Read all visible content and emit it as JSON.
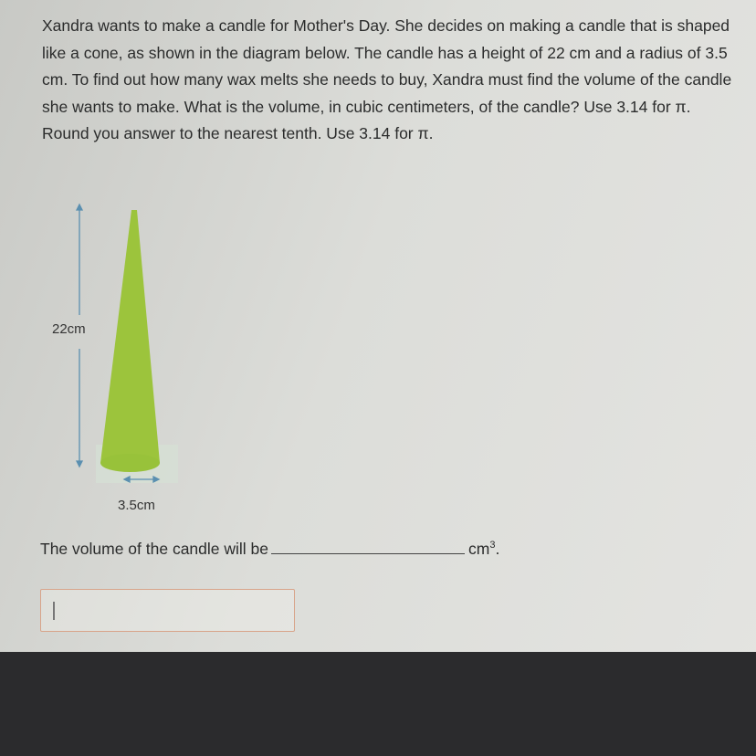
{
  "question": {
    "text": "Xandra wants to make a candle for Mother's Day. She decides on making a candle that is shaped like a cone, as shown in the diagram below. The candle has a height of 22 cm and a radius of 3.5 cm.  To find out how many wax melts she needs to buy, Xandra must find the volume of the candle she wants to make. What is the volume, in cubic centimeters, of the candle? Use 3.14 for π. Round you answer to the nearest tenth. Use 3.14 for π."
  },
  "diagram": {
    "height_label": "22cm",
    "radius_label": "3.5cm",
    "candle_color": "#9cc43c",
    "arrow_color": "#5a8fb0"
  },
  "answer": {
    "prompt": "The volume of the candle will be",
    "unit": "cm",
    "unit_exponent": "3",
    "unit_suffix": ".",
    "input_value": ""
  }
}
